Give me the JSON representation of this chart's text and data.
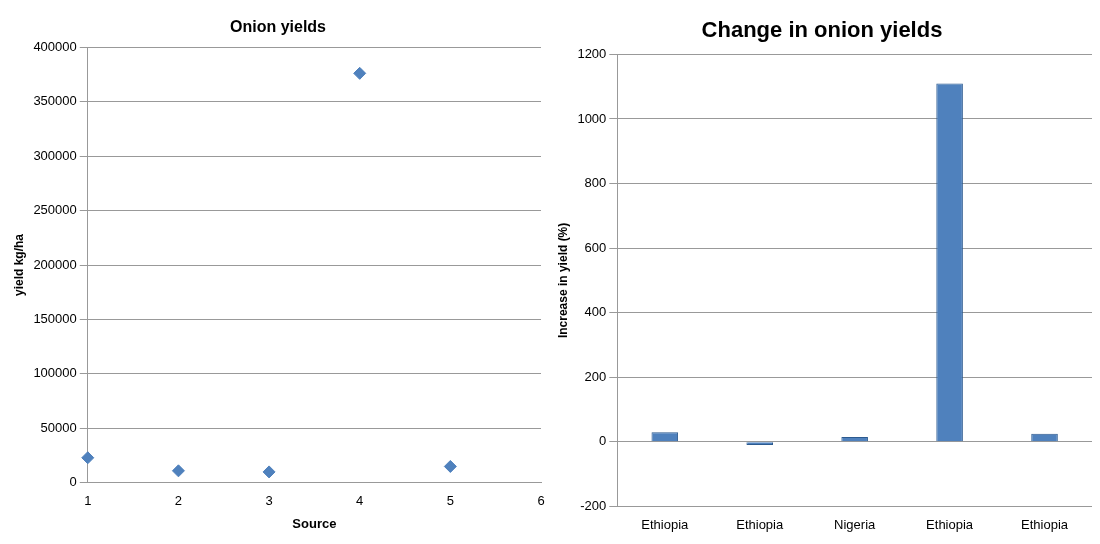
{
  "chart_data": [
    {
      "type": "scatter",
      "title": "Onion yields",
      "xlabel": "Source",
      "ylabel": "yield kg/ha",
      "x": [
        1,
        2,
        3,
        4,
        5
      ],
      "values": [
        23000,
        11000,
        10000,
        376000,
        15000
      ],
      "color": "#4f81bd",
      "xlim": [
        1,
        6
      ],
      "xticks": [
        1,
        2,
        3,
        4,
        5,
        6
      ],
      "ylim": [
        0,
        400000
      ],
      "yticks": [
        0,
        50000,
        100000,
        150000,
        200000,
        250000,
        300000,
        350000,
        400000
      ],
      "grid": "y",
      "marker": "diamond",
      "legend": false
    },
    {
      "type": "bar",
      "title": "Change in onion yields",
      "ylabel": "Increase in yield (%)",
      "categories": [
        "Ethiopia",
        "Ethiopia",
        "Nigeria",
        "Ethiopia",
        "Ethiopia"
      ],
      "values": [
        30,
        -10,
        15,
        1110,
        25
      ],
      "color": "#4f81bd",
      "ylim": [
        -200,
        1200
      ],
      "yticks": [
        -200,
        0,
        200,
        400,
        600,
        800,
        1000,
        1200
      ],
      "grid": "y",
      "legend": false
    }
  ]
}
